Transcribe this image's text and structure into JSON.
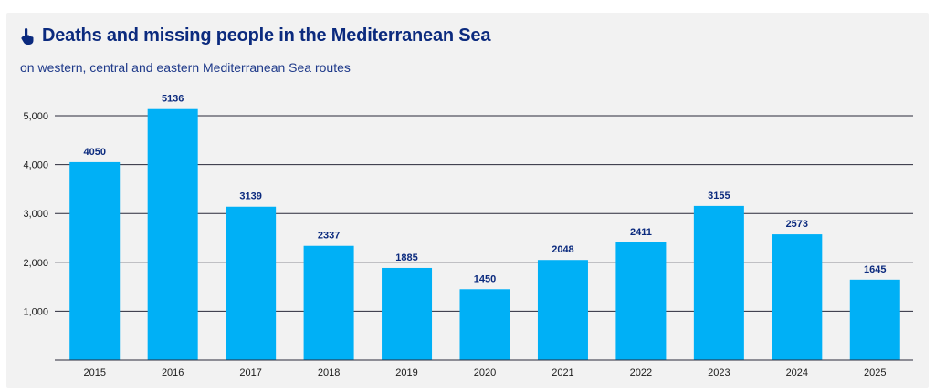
{
  "header": {
    "title": "Deaths and missing people in the Mediterranean Sea",
    "subtitle": "on western, central and eastern Mediterranean Sea routes",
    "icon": "pointing-hand-icon"
  },
  "colors": {
    "bar": "#00b0f6",
    "title": "#0b2a7e",
    "grid": "#2a2a3a",
    "background": "#f2f2f2"
  },
  "chart_data": {
    "type": "bar",
    "title": "Deaths and missing people in the Mediterranean Sea",
    "subtitle": "on western, central and eastern Mediterranean Sea routes",
    "categories": [
      "2015",
      "2016",
      "2017",
      "2018",
      "2019",
      "2020",
      "2021",
      "2022",
      "2023",
      "2024",
      "2025"
    ],
    "values": [
      4050,
      5136,
      3139,
      2337,
      1885,
      1450,
      2048,
      2411,
      3155,
      2573,
      1645
    ],
    "value_labels": [
      "4050",
      "5136",
      "3139",
      "2337",
      "1885",
      "1450",
      "2048",
      "2411",
      "3155",
      "2573",
      "1645"
    ],
    "yticks": [
      1000,
      2000,
      3000,
      4000,
      5000
    ],
    "ytick_labels": [
      "1,000",
      "2,000",
      "3,000",
      "4,000",
      "5,000"
    ],
    "ylim": [
      0,
      5000
    ],
    "xlabel": "",
    "ylabel": "",
    "grid": true,
    "legend": "none"
  }
}
